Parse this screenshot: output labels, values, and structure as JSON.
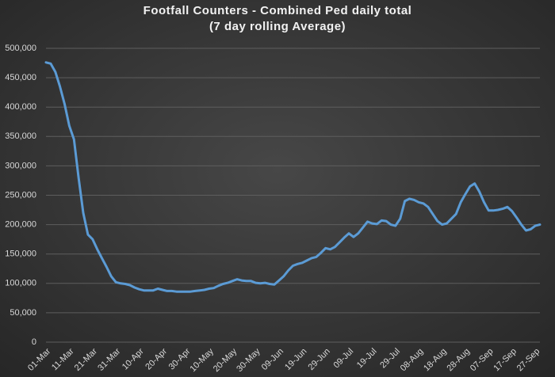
{
  "chart_data": {
    "type": "line",
    "title": "Footfall Counters - Combined Ped daily total",
    "subtitle": "(7 day rolling Average)",
    "categories": [
      "01-Mar",
      null,
      null,
      null,
      null,
      "11-Mar",
      null,
      null,
      null,
      null,
      "21-Mar",
      null,
      null,
      null,
      null,
      "31-Mar",
      null,
      null,
      null,
      null,
      "10-Apr",
      null,
      null,
      null,
      null,
      "20-Apr",
      null,
      null,
      null,
      null,
      "30-Apr",
      null,
      null,
      null,
      null,
      "10-May",
      null,
      null,
      null,
      null,
      "20-May",
      null,
      null,
      null,
      null,
      "30-May",
      null,
      null,
      null,
      null,
      "09-Jun",
      null,
      null,
      null,
      null,
      "19-Jun",
      null,
      null,
      null,
      null,
      "29-Jun",
      null,
      null,
      null,
      null,
      "09-Jul",
      null,
      null,
      null,
      null,
      "19-Jul",
      null,
      null,
      null,
      null,
      "29-Jul",
      null,
      null,
      null,
      null,
      "08-Aug",
      null,
      null,
      null,
      null,
      "18-Aug",
      null,
      null,
      null,
      null,
      "28-Aug",
      null,
      null,
      null,
      null,
      "07-Sep",
      null,
      null,
      null,
      null,
      "17-Sep",
      null,
      null,
      null,
      null,
      "27-Sep",
      null
    ],
    "values": [
      476000,
      474000,
      460000,
      435000,
      405000,
      368000,
      345000,
      280000,
      220000,
      183000,
      175000,
      158000,
      143000,
      128000,
      112000,
      102000,
      100000,
      99000,
      97000,
      93000,
      90000,
      88000,
      88000,
      88000,
      91000,
      89000,
      87000,
      87000,
      86000,
      86000,
      86000,
      86000,
      87000,
      88000,
      89000,
      91000,
      92000,
      96000,
      99000,
      101000,
      104000,
      107000,
      105000,
      104000,
      104000,
      101000,
      100000,
      101000,
      99000,
      98000,
      105000,
      112000,
      122000,
      130000,
      133000,
      135000,
      139000,
      143000,
      145000,
      152000,
      160000,
      158000,
      162000,
      170000,
      178000,
      185000,
      179000,
      185000,
      195000,
      205000,
      202000,
      201000,
      207000,
      206000,
      200000,
      198000,
      210000,
      240000,
      244000,
      242000,
      238000,
      236000,
      230000,
      218000,
      206000,
      200000,
      202000,
      210000,
      218000,
      238000,
      252000,
      265000,
      270000,
      256000,
      238000,
      224000,
      224000,
      225000,
      227000,
      230000,
      223000,
      212000,
      200000,
      190000,
      192000,
      198000,
      200000
    ],
    "color": "#5b9bd5",
    "ylim": [
      0,
      500000
    ],
    "yticks": [
      0,
      {
        "value": 50000,
        "label": "50,000"
      },
      {
        "value": 100000,
        "label": "100,000"
      },
      {
        "value": 150000,
        "label": "150,000"
      },
      {
        "value": 200000,
        "label": "200,000"
      },
      {
        "value": 250000,
        "label": "250,000"
      },
      {
        "value": 300000,
        "label": "300,000"
      },
      {
        "value": 350000,
        "label": "350,000"
      },
      {
        "value": 400000,
        "label": "400,000"
      },
      {
        "value": 450000,
        "label": "450,000"
      },
      {
        "value": 500000,
        "label": "500,000"
      }
    ],
    "grid": true
  }
}
